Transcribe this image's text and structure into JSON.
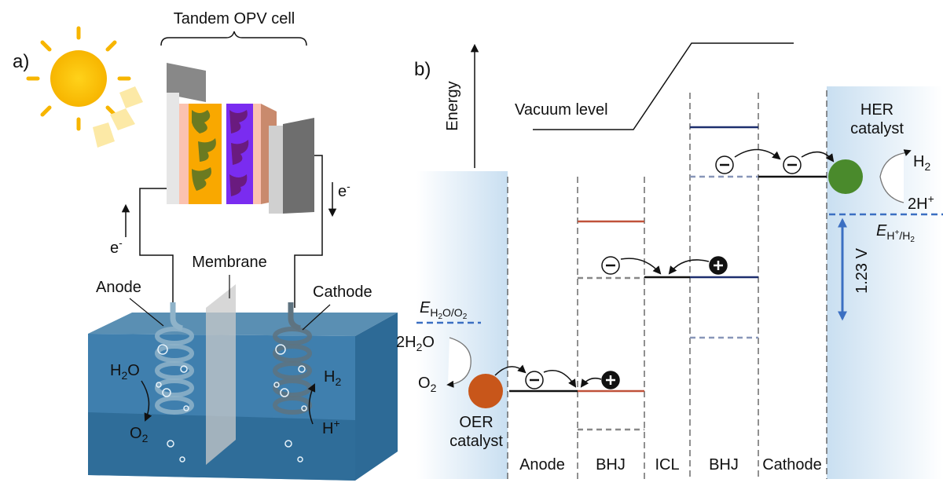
{
  "panel_a": {
    "label": "a)",
    "cell_title": "Tandem OPV cell",
    "electron_left": [
      "e",
      "-"
    ],
    "electron_right": [
      "e",
      "-"
    ],
    "membrane": "Membrane",
    "anode": "Anode",
    "cathode": "Cathode",
    "anode_reactant": [
      "H",
      "2",
      "O"
    ],
    "anode_product": [
      "O",
      "2"
    ],
    "cathode_product": [
      "H",
      "2"
    ],
    "cathode_reactant": [
      "H",
      "+"
    ]
  },
  "panel_b": {
    "label": "b)",
    "axis_label": "Energy",
    "vacuum_level": "Vacuum level",
    "her_catalyst": [
      "HER",
      "catalyst"
    ],
    "her_product": [
      "H",
      "2"
    ],
    "her_reactant": [
      "2H",
      "+"
    ],
    "her_potential": [
      "E",
      "H",
      "+",
      "/H",
      "2"
    ],
    "voltage": "1.23 V",
    "oer_potential": [
      "E",
      "H",
      "2",
      "O/O",
      "2"
    ],
    "oer_reactant": [
      "2H",
      "2",
      "O"
    ],
    "oer_product": [
      "O",
      "2"
    ],
    "oer_catalyst": [
      "OER",
      "catalyst"
    ],
    "layers": [
      "Anode",
      "BHJ",
      "ICL",
      "BHJ",
      "Cathode"
    ]
  }
}
